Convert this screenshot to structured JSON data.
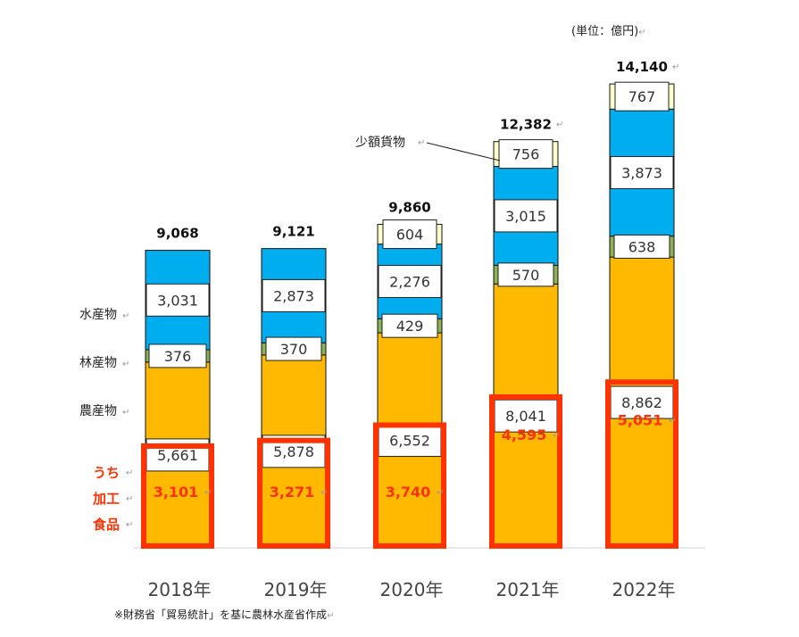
{
  "unit_label": "(単位：億円)",
  "footnote": "※財務省「貿易統計」を基に農林水産省作成",
  "chart_data": {
    "type": "bar",
    "stacked": true,
    "categories": [
      "2018年",
      "2019年",
      "2020年",
      "2021年",
      "2022年"
    ],
    "totals": [
      "9,068",
      "9,121",
      "9,860",
      "12,382",
      "14,140"
    ],
    "series": [
      {
        "name": "農産物",
        "values": [
          5661,
          5878,
          6552,
          8041,
          8862
        ],
        "color": "#FFB900"
      },
      {
        "name": "林産物",
        "values": [
          376,
          370,
          429,
          570,
          638
        ],
        "color": "#8DB255"
      },
      {
        "name": "水産物",
        "values": [
          3031,
          2873,
          2276,
          3015,
          3873
        ],
        "color": "#00ADEF"
      },
      {
        "name": "少額貨物",
        "values": [
          0,
          0,
          604,
          756,
          767
        ],
        "color": "#FFFFCC"
      }
    ],
    "labels": {
      "農産物": [
        "5,661",
        "5,878",
        "6,552",
        "8,041",
        "8,862"
      ],
      "林産物": [
        "376",
        "370",
        "429",
        "570",
        "638"
      ],
      "水産物": [
        "3,031",
        "2,873",
        "2,276",
        "3,015",
        "3,873"
      ],
      "少額貨物": [
        "",
        "",
        "604",
        "756",
        "767"
      ]
    },
    "processed_food": {
      "label_lines": [
        "うち",
        "加工",
        "食品"
      ],
      "values": [
        3101,
        3271,
        3740,
        4595,
        5051
      ],
      "labels": [
        "3,101",
        "3,271",
        "3,740",
        "4,595",
        "5,051"
      ],
      "color": "#FF3300"
    },
    "series_labels": {
      "水産物": "水産物",
      "林産物": "林産物",
      "農産物": "農産物",
      "少額貨物": "少額貨物"
    },
    "ylim": [
      0,
      15000
    ],
    "grid": false
  }
}
